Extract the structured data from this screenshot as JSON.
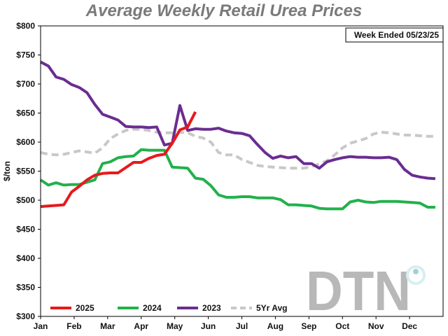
{
  "chart_data": {
    "type": "line",
    "title": "Average Weekly Retail Urea Prices",
    "ylabel": "$/ton",
    "xlabel": "",
    "annotation": "Week Ended 05/23/25",
    "logo_text": "DTN",
    "ylim": [
      300,
      800
    ],
    "xlim": [
      0,
      52
    ],
    "y_ticks": [
      300,
      350,
      400,
      450,
      500,
      550,
      600,
      650,
      700,
      750,
      800
    ],
    "y_tick_labels": [
      "$300",
      "$350",
      "$400",
      "$450",
      "$500",
      "$550",
      "$600",
      "$650",
      "$700",
      "$750",
      "$800"
    ],
    "x_tick_labels": [
      "Jan",
      "Feb",
      "Mar",
      "Apr",
      "May",
      "Jun",
      "Jul",
      "Aug",
      "Sep",
      "Oct",
      "Nov",
      "Dec"
    ],
    "grid": false,
    "legend_position": "bottom-left",
    "series": [
      {
        "name": "2025",
        "color": "#e8191b",
        "dashed": false,
        "values": [
          [
            0,
            489
          ],
          [
            1,
            490
          ],
          [
            2,
            491
          ],
          [
            3,
            492
          ],
          [
            4,
            514
          ],
          [
            5,
            524
          ],
          [
            6,
            535
          ],
          [
            7,
            543
          ],
          [
            8,
            546
          ],
          [
            9,
            547
          ],
          [
            10,
            547
          ],
          [
            11,
            556
          ],
          [
            12,
            565
          ],
          [
            13,
            565
          ],
          [
            14,
            572
          ],
          [
            15,
            577
          ],
          [
            16,
            579
          ],
          [
            17,
            598
          ],
          [
            18,
            621
          ],
          [
            19,
            626
          ],
          [
            20,
            652
          ]
        ]
      },
      {
        "name": "2024",
        "color": "#22b14c",
        "dashed": false,
        "values": [
          [
            0,
            535
          ],
          [
            1,
            526
          ],
          [
            2,
            530
          ],
          [
            3,
            526
          ],
          [
            4,
            527
          ],
          [
            5,
            527
          ],
          [
            6,
            531
          ],
          [
            7,
            535
          ],
          [
            8,
            563
          ],
          [
            9,
            566
          ],
          [
            10,
            573
          ],
          [
            11,
            575
          ],
          [
            12,
            576
          ],
          [
            13,
            587
          ],
          [
            14,
            586
          ],
          [
            15,
            586
          ],
          [
            16,
            586
          ],
          [
            17,
            557
          ],
          [
            18,
            556
          ],
          [
            19,
            555
          ],
          [
            20,
            538
          ],
          [
            21,
            536
          ],
          [
            22,
            525
          ],
          [
            23,
            509
          ],
          [
            24,
            505
          ],
          [
            25,
            505
          ],
          [
            26,
            506
          ],
          [
            27,
            506
          ],
          [
            28,
            504
          ],
          [
            29,
            504
          ],
          [
            30,
            504
          ],
          [
            31,
            501
          ],
          [
            32,
            492
          ],
          [
            33,
            492
          ],
          [
            34,
            491
          ],
          [
            35,
            490
          ],
          [
            36,
            486
          ],
          [
            37,
            485
          ],
          [
            38,
            485
          ],
          [
            39,
            485
          ],
          [
            40,
            497
          ],
          [
            41,
            500
          ],
          [
            42,
            497
          ],
          [
            43,
            496
          ],
          [
            44,
            498
          ],
          [
            45,
            498
          ],
          [
            46,
            498
          ],
          [
            47,
            497
          ],
          [
            48,
            496
          ],
          [
            49,
            495
          ],
          [
            50,
            488
          ],
          [
            51,
            488
          ]
        ]
      },
      {
        "name": "2023",
        "color": "#6a2d91",
        "dashed": false,
        "values": [
          [
            0,
            738
          ],
          [
            1,
            731
          ],
          [
            2,
            712
          ],
          [
            3,
            708
          ],
          [
            4,
            699
          ],
          [
            5,
            694
          ],
          [
            6,
            685
          ],
          [
            7,
            665
          ],
          [
            8,
            648
          ],
          [
            9,
            643
          ],
          [
            10,
            638
          ],
          [
            11,
            627
          ],
          [
            12,
            626
          ],
          [
            13,
            626
          ],
          [
            14,
            625
          ],
          [
            15,
            626
          ],
          [
            16,
            595
          ],
          [
            17,
            598
          ],
          [
            18,
            663
          ],
          [
            19,
            620
          ],
          [
            20,
            623
          ],
          [
            21,
            622
          ],
          [
            22,
            622
          ],
          [
            23,
            624
          ],
          [
            24,
            619
          ],
          [
            25,
            616
          ],
          [
            26,
            615
          ],
          [
            27,
            611
          ],
          [
            28,
            596
          ],
          [
            29,
            582
          ],
          [
            30,
            572
          ],
          [
            31,
            576
          ],
          [
            32,
            573
          ],
          [
            33,
            575
          ],
          [
            34,
            563
          ],
          [
            35,
            563
          ],
          [
            36,
            555
          ],
          [
            37,
            566
          ],
          [
            38,
            570
          ],
          [
            39,
            573
          ],
          [
            40,
            575
          ],
          [
            41,
            574
          ],
          [
            42,
            574
          ],
          [
            43,
            573
          ],
          [
            44,
            573
          ],
          [
            45,
            574
          ],
          [
            46,
            570
          ],
          [
            47,
            553
          ],
          [
            48,
            543
          ],
          [
            49,
            540
          ],
          [
            50,
            538
          ],
          [
            51,
            537
          ]
        ]
      },
      {
        "name": "5Yr Avg",
        "color": "#c8c8c8",
        "dashed": true,
        "values": [
          [
            0,
            582
          ],
          [
            1,
            579
          ],
          [
            2,
            578
          ],
          [
            3,
            579
          ],
          [
            4,
            582
          ],
          [
            5,
            585
          ],
          [
            6,
            583
          ],
          [
            7,
            581
          ],
          [
            8,
            590
          ],
          [
            9,
            606
          ],
          [
            10,
            614
          ],
          [
            11,
            620
          ],
          [
            12,
            622
          ],
          [
            13,
            622
          ],
          [
            14,
            620
          ],
          [
            15,
            617
          ],
          [
            16,
            616
          ],
          [
            17,
            616
          ],
          [
            18,
            617
          ],
          [
            19,
            616
          ],
          [
            20,
            610
          ],
          [
            21,
            607
          ],
          [
            22,
            600
          ],
          [
            23,
            582
          ],
          [
            24,
            578
          ],
          [
            25,
            578
          ],
          [
            26,
            570
          ],
          [
            27,
            565
          ],
          [
            28,
            560
          ],
          [
            29,
            558
          ],
          [
            30,
            557
          ],
          [
            31,
            556
          ],
          [
            32,
            555
          ],
          [
            33,
            555
          ],
          [
            34,
            555
          ],
          [
            35,
            558
          ],
          [
            36,
            562
          ],
          [
            37,
            568
          ],
          [
            38,
            578
          ],
          [
            39,
            590
          ],
          [
            40,
            598
          ],
          [
            41,
            602
          ],
          [
            42,
            606
          ],
          [
            43,
            614
          ],
          [
            44,
            617
          ],
          [
            45,
            616
          ],
          [
            46,
            614
          ],
          [
            47,
            612
          ],
          [
            48,
            612
          ],
          [
            49,
            611
          ],
          [
            50,
            610
          ],
          [
            51,
            610
          ]
        ]
      }
    ]
  }
}
